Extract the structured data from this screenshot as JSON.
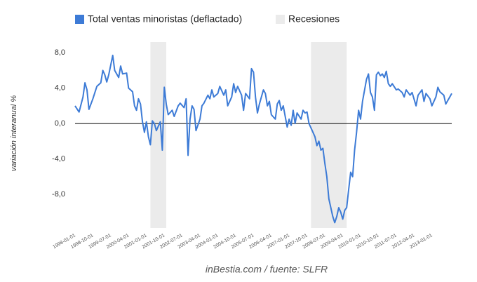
{
  "chart_data": {
    "type": "line",
    "series": [
      {
        "name": "Total ventas minoristas (deflactado)",
        "color": "#3d7bd6",
        "values": [
          2.0,
          1.3,
          3.0,
          4.6,
          3.8,
          1.6,
          2.8,
          4.2,
          4.6,
          6.0,
          5.5,
          4.7,
          5.5,
          7.7,
          6.0,
          5.2,
          6.5,
          5.6,
          5.7,
          4.0,
          3.6,
          2.0,
          1.5,
          2.8,
          2.2,
          0.2,
          -1.0,
          0.2,
          -1.5,
          -2.4,
          0.3,
          0.0,
          -0.8,
          0.2,
          -3.0,
          4.1,
          2.2,
          1.0,
          1.5,
          0.8,
          2.0,
          2.3,
          1.8,
          2.8,
          -3.6,
          0.5,
          2.0,
          1.6,
          -0.8,
          0.5,
          2.0,
          2.3,
          3.2,
          2.8,
          3.8,
          3.0,
          3.4,
          4.2,
          3.2,
          3.8,
          2.0,
          3.0,
          4.5,
          3.5,
          4.2,
          3.2,
          1.5,
          3.4,
          2.8,
          6.2,
          5.8,
          3.0,
          1.2,
          2.2,
          3.8,
          3.4,
          2.0,
          2.5,
          1.0,
          0.5,
          2.2,
          2.6,
          1.5,
          2.0,
          -0.4,
          0.5,
          -0.2,
          1.5,
          0.0,
          1.2,
          0.5,
          1.5,
          1.2,
          1.3,
          0.0,
          -1.0,
          -1.5,
          -2.5,
          -2.0,
          -3.0,
          -2.8,
          -4.5,
          -6.0,
          -8.5,
          -10.5,
          -11.2,
          -10.5,
          -9.5,
          -10.0,
          -10.8,
          -9.8,
          -9.5,
          -7.5,
          -5.5,
          -6.0,
          -3.0,
          -1.0,
          1.5,
          0.5,
          2.5,
          5.0,
          5.6,
          3.5,
          3.0,
          1.5,
          5.5,
          5.8,
          5.4,
          5.6,
          5.2,
          5.9,
          4.5,
          4.2,
          4.5,
          3.8,
          3.9,
          3.5,
          3.0,
          3.8,
          3.2,
          3.5,
          2.0,
          3.2,
          3.8,
          2.5,
          3.4,
          2.8,
          2.0,
          3.0,
          4.1,
          3.6,
          3.2,
          2.2,
          3.0,
          3.4
        ]
      }
    ],
    "x": [
      "1998-01-01",
      "1998-03-01",
      "1998-05-01",
      "1998-06-01",
      "1998-07-01",
      "1998-08-01",
      "1998-10-01",
      "1998-12-01",
      "1999-02-01",
      "1999-03-01",
      "1999-04-01",
      "1999-05-01",
      "1999-06-01",
      "1999-08-01",
      "1999-09-01",
      "1999-11-01",
      "1999-12-01",
      "2000-01-01",
      "2000-03-01",
      "2000-04-01",
      "2000-06-01",
      "2000-07-01",
      "2000-08-01",
      "2000-09-01",
      "2000-10-01",
      "2000-11-01",
      "2000-12-01",
      "2001-01-01",
      "2001-02-01",
      "2001-03-01",
      "2001-04-01",
      "2001-05-01",
      "2001-06-01",
      "2001-08-01",
      "2001-09-01",
      "2001-10-01",
      "2001-11-01",
      "2001-12-01",
      "2002-02-01",
      "2002-03-01",
      "2002-05-01",
      "2002-06-01",
      "2002-08-01",
      "2002-09-01",
      "2002-10-01",
      "2002-11-01",
      "2002-12-01",
      "2003-01-01",
      "2003-02-01",
      "2003-04-01",
      "2003-05-01",
      "2003-06-01",
      "2003-08-01",
      "2003-09-01",
      "2003-10-01",
      "2003-11-01",
      "2004-01-01",
      "2004-02-01",
      "2004-04-01",
      "2004-05-01",
      "2004-06-01",
      "2004-08-01",
      "2004-09-01",
      "2004-10-01",
      "2004-11-01",
      "2005-01-01",
      "2005-02-01",
      "2005-03-01",
      "2005-05-01",
      "2005-06-01",
      "2005-07-01",
      "2005-08-01",
      "2005-09-01",
      "2005-10-01",
      "2005-12-01",
      "2006-01-01",
      "2006-02-01",
      "2006-03-01",
      "2006-04-01",
      "2006-06-01",
      "2006-07-01",
      "2006-08-01",
      "2006-09-01",
      "2006-10-01",
      "2006-12-01",
      "2007-01-01",
      "2007-02-01",
      "2007-03-01",
      "2007-04-01",
      "2007-05-01",
      "2007-07-01",
      "2007-08-01",
      "2007-09-01",
      "2007-10-01",
      "2007-11-01",
      "2008-01-01",
      "2008-02-01",
      "2008-03-01",
      "2008-04-01",
      "2008-05-01",
      "2008-06-01",
      "2008-07-01",
      "2008-08-01",
      "2008-09-01",
      "2008-11-01",
      "2008-12-01",
      "2009-01-01",
      "2009-02-01",
      "2009-03-01",
      "2009-04-01",
      "2009-05-01",
      "2009-06-01",
      "2009-07-01",
      "2009-08-01",
      "2009-09-01",
      "2009-10-01",
      "2009-11-01",
      "2009-12-01",
      "2010-01-01",
      "2010-02-01",
      "2010-04-01",
      "2010-05-01",
      "2010-06-01",
      "2010-07-01",
      "2010-08-01",
      "2010-09-01",
      "2010-10-01",
      "2010-11-01",
      "2010-12-01",
      "2011-01-01",
      "2011-02-01",
      "2011-03-01",
      "2011-04-01",
      "2011-05-01",
      "2011-07-01",
      "2011-08-01",
      "2011-10-01",
      "2011-11-01",
      "2011-12-01",
      "2012-02-01",
      "2012-03-01",
      "2012-05-01",
      "2012-06-01",
      "2012-08-01",
      "2012-09-01",
      "2012-10-01",
      "2012-12-01",
      "2013-01-01",
      "2013-03-01",
      "2013-04-01",
      "2013-05-01",
      "2013-07-01",
      "2013-08-01",
      "2013-10-01",
      "2013-11-01"
    ],
    "xlim": [
      "1998-01-01",
      "2013-11-01"
    ],
    "xticks": [
      "1998-01-01",
      "1998-10-01",
      "1999-07-01",
      "2000-04-01",
      "2001-01-01",
      "2001-10-01",
      "2002-07-01",
      "2003-04-01",
      "2004-01-01",
      "2004-10-01",
      "2005-07-01",
      "2006-04-01",
      "2007-01-01",
      "2007-10-01",
      "2008-07-01",
      "2009-04-01",
      "2010-01-01",
      "2010-10-01",
      "2011-07-01",
      "2012-04-01",
      "2013-01-01"
    ],
    "ylim": [
      -11.8,
      9.2
    ],
    "yticks": [
      {
        "value": 8,
        "label": "8,0"
      },
      {
        "value": 4,
        "label": "4,0"
      },
      {
        "value": 0,
        "label": "0,0"
      },
      {
        "value": -4,
        "label": "-4,0"
      },
      {
        "value": -8,
        "label": "-8,0"
      }
    ],
    "ylabel": "variación interanual %",
    "recessions": {
      "name": "Recesiones",
      "color": "#ebebeb",
      "periods": [
        [
          "2001-03-01",
          "2001-11-01"
        ],
        [
          "2007-12-01",
          "2009-06-01"
        ]
      ]
    },
    "source": "inBestia.com / fuente: SLFR"
  }
}
